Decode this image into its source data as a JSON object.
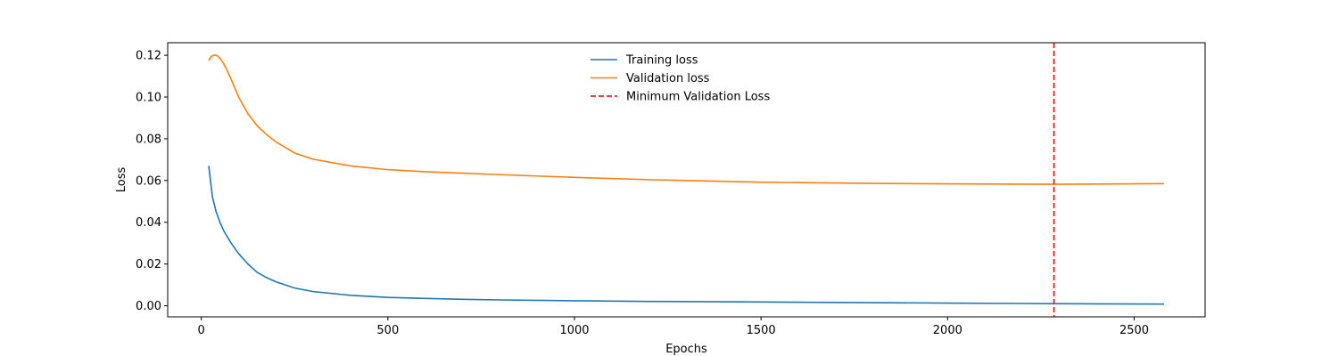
{
  "chart_data": {
    "type": "line",
    "title": "",
    "xlabel": "Epochs",
    "ylabel": "Loss",
    "xlim": [
      -90,
      2690
    ],
    "ylim": [
      -0.0053,
      0.126
    ],
    "xticks": [
      0,
      500,
      1000,
      1500,
      2000,
      2500
    ],
    "xtick_labels": [
      "0",
      "500",
      "1000",
      "1500",
      "2000",
      "2500"
    ],
    "yticks": [
      0.0,
      0.02,
      0.04,
      0.06,
      0.08,
      0.1,
      0.12
    ],
    "ytick_labels": [
      "0.00",
      "0.02",
      "0.04",
      "0.06",
      "0.08",
      "0.10",
      "0.12"
    ],
    "grid": false,
    "legend_position": "top-center",
    "series": [
      {
        "name": "Training loss",
        "color": "#1f77b4",
        "style": "solid",
        "x": [
          20,
          30,
          40,
          50,
          60,
          80,
          100,
          125,
          150,
          175,
          200,
          250,
          300,
          400,
          500,
          600,
          700,
          800,
          1000,
          1200,
          1500,
          1800,
          2000,
          2285,
          2400,
          2580
        ],
        "y": [
          0.067,
          0.052,
          0.045,
          0.04,
          0.036,
          0.03,
          0.025,
          0.02,
          0.016,
          0.0135,
          0.0115,
          0.0085,
          0.0068,
          0.005,
          0.004,
          0.0035,
          0.0031,
          0.0028,
          0.0024,
          0.0021,
          0.0018,
          0.0015,
          0.0013,
          0.001,
          0.0009,
          0.0008
        ]
      },
      {
        "name": "Validation loss",
        "color": "#ff7f0e",
        "style": "solid",
        "x": [
          20,
          25,
          30,
          35,
          40,
          45,
          50,
          60,
          70,
          80,
          100,
          125,
          150,
          175,
          200,
          250,
          300,
          400,
          500,
          600,
          700,
          800,
          1000,
          1200,
          1500,
          1800,
          2000,
          2285,
          2400,
          2580
        ],
        "y": [
          0.1175,
          0.119,
          0.1198,
          0.12,
          0.12,
          0.1195,
          0.1185,
          0.116,
          0.1125,
          0.1085,
          0.1,
          0.092,
          0.0862,
          0.082,
          0.0785,
          0.0732,
          0.0702,
          0.067,
          0.0652,
          0.0642,
          0.0635,
          0.0628,
          0.0615,
          0.0604,
          0.0592,
          0.0586,
          0.0584,
          0.0582,
          0.0583,
          0.0585
        ]
      }
    ],
    "vline": {
      "name": "Minimum Validation Loss",
      "x": 2285,
      "color": "#ff0000",
      "style": "dashed"
    }
  }
}
